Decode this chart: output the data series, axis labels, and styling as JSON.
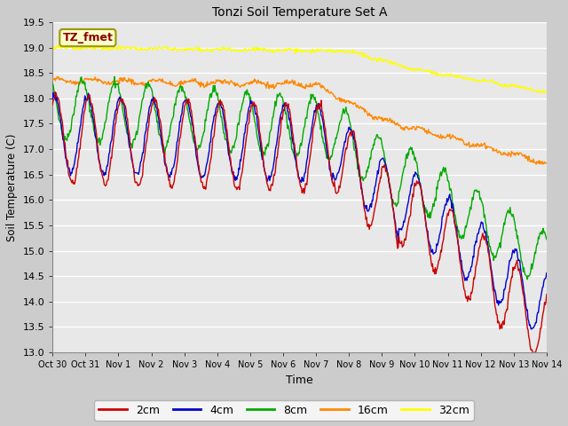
{
  "title": "Tonzi Soil Temperature Set A",
  "xlabel": "Time",
  "ylabel": "Soil Temperature (C)",
  "ylim": [
    13.0,
    19.5
  ],
  "yticks": [
    13.0,
    13.5,
    14.0,
    14.5,
    15.0,
    15.5,
    16.0,
    16.5,
    17.0,
    17.5,
    18.0,
    18.5,
    19.0,
    19.5
  ],
  "colors": {
    "2cm": "#cc0000",
    "4cm": "#0000cc",
    "8cm": "#00aa00",
    "16cm": "#ff8800",
    "32cm": "#ffff00"
  },
  "annotation_label": "TZ_fmet",
  "annotation_color": "#8b0000",
  "annotation_bg": "#ffffcc",
  "x_tick_labels": [
    "Oct 30",
    "Oct 31",
    "Nov 1",
    "Nov 2",
    "Nov 3",
    "Nov 4",
    "Nov 5",
    "Nov 6",
    "Nov 7",
    "Nov 8",
    "Nov 9",
    "Nov 10",
    "Nov 11",
    "Nov 12",
    "Nov 13",
    "Nov 14"
  ],
  "linewidth": 1.0
}
